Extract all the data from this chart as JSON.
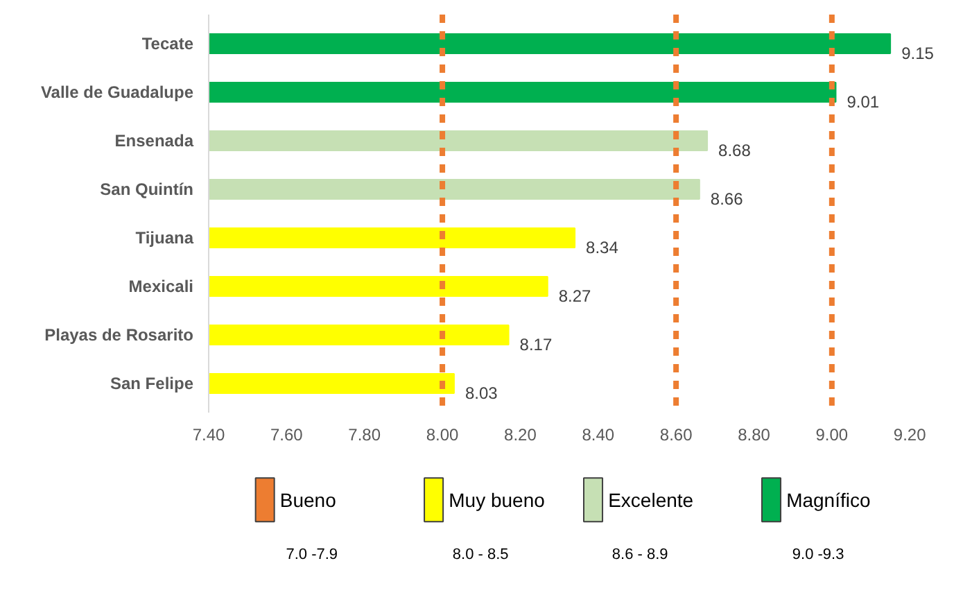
{
  "chart_data": {
    "type": "bar",
    "orientation": "horizontal",
    "categories": [
      "Tecate",
      "Valle de Guadalupe",
      "Ensenada",
      "San Quintín",
      "Tijuana",
      "Mexicali",
      "Playas de Rosarito",
      "San Felipe"
    ],
    "series": [
      {
        "name": "Bueno",
        "color": "#ed7d31",
        "values": [
          null,
          null,
          null,
          null,
          null,
          null,
          null,
          null
        ]
      },
      {
        "name": "Muy bueno",
        "color": "#ffff00",
        "values": [
          null,
          null,
          null,
          null,
          8.34,
          8.27,
          8.17,
          8.03
        ]
      },
      {
        "name": "Excelente",
        "color": "#c6e0b4",
        "values": [
          null,
          null,
          8.68,
          8.66,
          null,
          null,
          null,
          null
        ]
      },
      {
        "name": "Magnífico",
        "color": "#00b050",
        "values": [
          9.15,
          9.01,
          null,
          null,
          null,
          null,
          null,
          null
        ]
      }
    ],
    "xlim": [
      7.4,
      9.2
    ],
    "xticks": [
      {
        "value": 7.4,
        "label": "7.40"
      },
      {
        "value": 7.6,
        "label": "7.60"
      },
      {
        "value": 7.8,
        "label": "7.80"
      },
      {
        "value": 8.0,
        "label": "8.00"
      },
      {
        "value": 8.2,
        "label": "8.20"
      },
      {
        "value": 8.4,
        "label": "8.40"
      },
      {
        "value": 8.6,
        "label": "8.60"
      },
      {
        "value": 8.8,
        "label": "8.80"
      },
      {
        "value": 9.0,
        "label": "9.00"
      },
      {
        "value": 9.2,
        "label": "9.20"
      }
    ],
    "ref_lines": [
      {
        "axis": "x",
        "value": 8.0,
        "color": "#ed7d31",
        "line_style": "dashed"
      },
      {
        "axis": "x",
        "value": 8.6,
        "color": "#ed7d31",
        "line_style": "dashed"
      },
      {
        "axis": "x",
        "value": 9.0,
        "color": "#ed7d31",
        "line_style": "dashed"
      }
    ],
    "annotations": [
      "7.0 -7.9",
      "8.0 - 8.5",
      "8.6 - 8.9",
      "9.0 -9.3"
    ],
    "data_labels": true,
    "legend": "bottom",
    "grid": false
  }
}
